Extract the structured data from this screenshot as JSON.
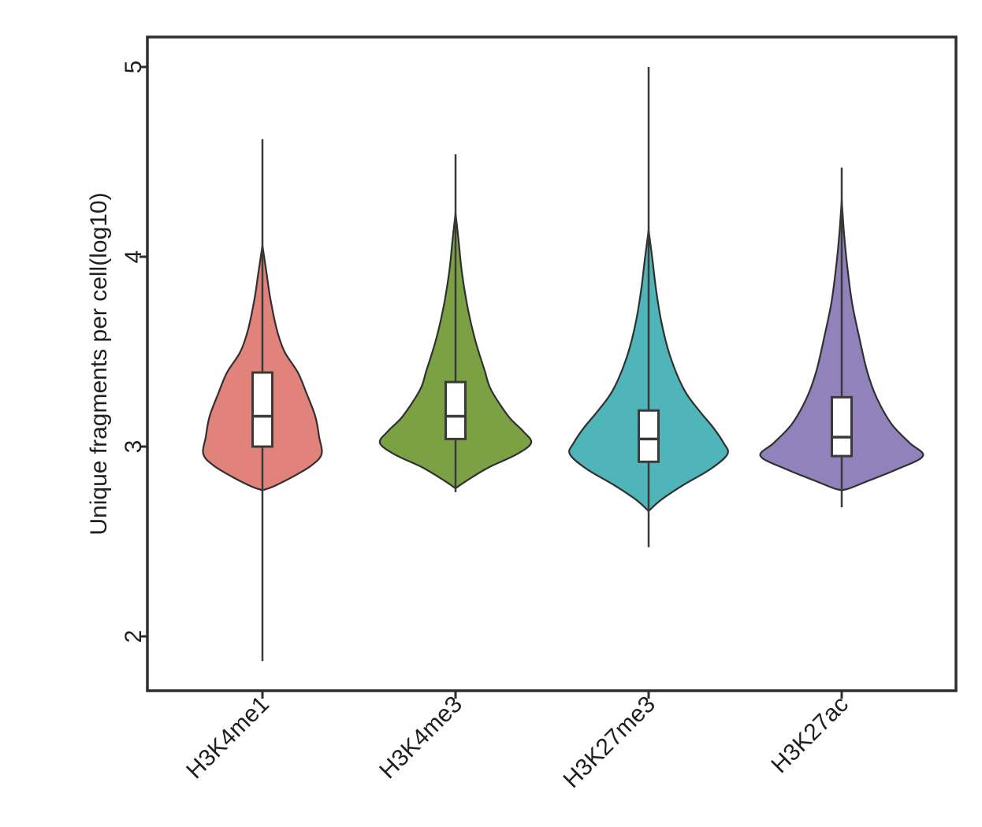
{
  "figure": {
    "background": "#ffffff",
    "frame_color": "#2e2e2e",
    "line_color": "#3a3a3a",
    "box_fill": "#ffffff",
    "text_color": "#1f1f1f"
  },
  "chart_data": {
    "type": "violin",
    "title": "",
    "xlabel": "",
    "ylabel": "Unique fragments per cell(log10)",
    "legend": "none",
    "grid": false,
    "y_axis": {
      "tick_values": [
        2,
        3,
        4,
        5
      ],
      "tick_labels": [
        "2",
        "3",
        "4",
        "5"
      ],
      "ylim": [
        1.7,
        5.16
      ],
      "units": "log10 unique fragments per cell"
    },
    "categories": [
      "H3K4me1",
      "H3K4me3",
      "H3K27me3",
      "H3K27ac"
    ],
    "series": [
      {
        "name": "H3K4me1",
        "color": "#E2837B",
        "stats": {
          "min": 1.87,
          "q1": 3.0,
          "median": 3.16,
          "q3": 3.39,
          "max": 4.62
        },
        "violin_range": [
          2.77,
          4.06
        ],
        "density_profile": [
          [
            4.06,
            0
          ],
          [
            3.92,
            5
          ],
          [
            3.78,
            10
          ],
          [
            3.62,
            18
          ],
          [
            3.5,
            28
          ],
          [
            3.39,
            45
          ],
          [
            3.28,
            56
          ],
          [
            3.16,
            67
          ],
          [
            3.05,
            72
          ],
          [
            2.96,
            75
          ],
          [
            2.9,
            62
          ],
          [
            2.84,
            38
          ],
          [
            2.79,
            14
          ],
          [
            2.77,
            0
          ]
        ]
      },
      {
        "name": "H3K4me3",
        "color": "#7CA144",
        "stats": {
          "min": 2.76,
          "q1": 3.04,
          "median": 3.16,
          "q3": 3.34,
          "max": 4.54
        },
        "violin_range": [
          2.78,
          4.23
        ],
        "density_profile": [
          [
            4.23,
            0
          ],
          [
            4.08,
            4
          ],
          [
            3.92,
            8
          ],
          [
            3.74,
            15
          ],
          [
            3.56,
            25
          ],
          [
            3.4,
            37
          ],
          [
            3.3,
            45
          ],
          [
            3.16,
            67
          ],
          [
            3.08,
            86
          ],
          [
            3.02,
            96
          ],
          [
            2.96,
            78
          ],
          [
            2.89,
            42
          ],
          [
            2.82,
            14
          ],
          [
            2.78,
            0
          ]
        ]
      },
      {
        "name": "H3K27me3",
        "color": "#4FB5B8",
        "stats": {
          "min": 2.47,
          "q1": 2.92,
          "median": 3.04,
          "q3": 3.19,
          "max": 5.0
        },
        "violin_range": [
          2.66,
          4.14
        ],
        "density_profile": [
          [
            4.14,
            0
          ],
          [
            3.98,
            5
          ],
          [
            3.84,
            9
          ],
          [
            3.66,
            16
          ],
          [
            3.48,
            27
          ],
          [
            3.3,
            45
          ],
          [
            3.19,
            64
          ],
          [
            3.1,
            82
          ],
          [
            3.02,
            95
          ],
          [
            2.96,
            100
          ],
          [
            2.88,
            78
          ],
          [
            2.8,
            45
          ],
          [
            2.72,
            16
          ],
          [
            2.66,
            0
          ]
        ]
      },
      {
        "name": "H3K27ac",
        "color": "#9282BC",
        "stats": {
          "min": 2.68,
          "q1": 2.95,
          "median": 3.05,
          "q3": 3.26,
          "max": 4.47
        },
        "violin_range": [
          2.77,
          4.3
        ],
        "density_profile": [
          [
            4.3,
            0
          ],
          [
            4.12,
            3
          ],
          [
            3.95,
            7
          ],
          [
            3.76,
            13
          ],
          [
            3.58,
            22
          ],
          [
            3.4,
            32
          ],
          [
            3.26,
            44
          ],
          [
            3.12,
            63
          ],
          [
            3.02,
            86
          ],
          [
            2.95,
            103
          ],
          [
            2.88,
            70
          ],
          [
            2.82,
            34
          ],
          [
            2.78,
            10
          ],
          [
            2.77,
            0
          ]
        ]
      }
    ]
  }
}
